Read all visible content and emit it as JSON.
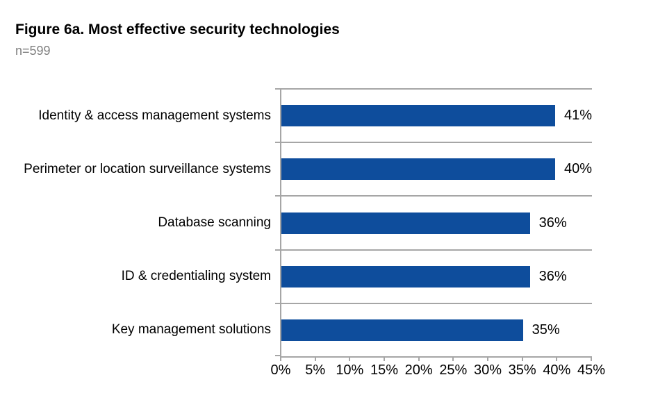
{
  "header": {
    "title": "Figure 6a. Most effective security technologies",
    "sample_size": "n=599"
  },
  "chart_data": {
    "type": "bar",
    "orientation": "horizontal",
    "title": "Figure 6a. Most effective security technologies",
    "subtitle": "n=599",
    "categories": [
      "Identity & access management systems",
      "Perimeter or location surveillance systems",
      "Database scanning",
      "ID & credentialing system",
      "Key management solutions"
    ],
    "values": [
      41,
      40,
      36,
      36,
      35
    ],
    "value_labels": [
      "41%",
      "40%",
      "36%",
      "36%",
      "35%"
    ],
    "x_tick_labels": [
      "0%",
      "5%",
      "10%",
      "15%",
      "20%",
      "25%",
      "30%",
      "35%",
      "40%",
      "45%"
    ],
    "xlim": [
      0,
      45
    ],
    "x_tick_step": 5,
    "legend": "none",
    "grid": "horizontal category separators",
    "colors": {
      "bar": "#0e4d9c",
      "grid": "#a6a6a6",
      "title": "#000000",
      "subtitle": "#7f7f7f",
      "text": "#000000"
    }
  }
}
